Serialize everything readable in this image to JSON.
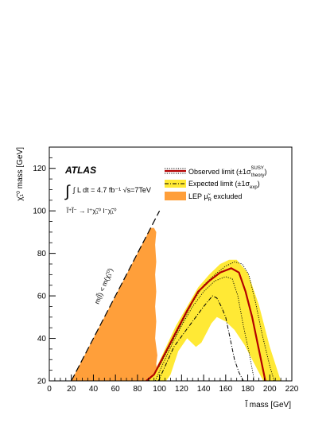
{
  "chart_data": {
    "type": "exclusion-contour",
    "xlabel": "l̃ mass [GeV]",
    "ylabel": "χ̃₁⁰ mass [GeV]",
    "xlim": [
      0,
      220
    ],
    "ylim": [
      20,
      130
    ],
    "x_ticks": [
      0,
      20,
      40,
      60,
      80,
      100,
      120,
      140,
      160,
      180,
      200,
      220
    ],
    "y_ticks": [
      20,
      40,
      60,
      80,
      100,
      120
    ],
    "experiment": "ATLAS",
    "luminosity": "∫ L dt = 4.7 fb⁻¹ √s=7TeV",
    "process": "l̃⁺l̃⁻ → l⁺χ̃₁⁰ l⁻χ̃₁⁰",
    "diagonal_label": "m(l̃) < m(χ̃₁⁰)",
    "legend": [
      {
        "name": "Observed limit (±1σ theory SUSY)",
        "label_main": "Observed limit (±1σ",
        "label_sup": "SUSY",
        "label_sub": "theory",
        "label_end": ")",
        "style": "observed"
      },
      {
        "name": "Expected limit (±1σ exp)",
        "label_main": "Expected limit (±1σ",
        "label_sub": "exp",
        "label_end": ")",
        "style": "expected"
      },
      {
        "name": "LEP μ̃R excluded",
        "label_main": "LEP μ̃",
        "label_sub": "R",
        "label_end": " excluded",
        "style": "lep"
      }
    ],
    "colors": {
      "observed": "#b30000",
      "expected_band": "#ffe935",
      "lep": "#ff9f3a",
      "diagonal": "#000000"
    },
    "diagonal": {
      "x": [
        20,
        100
      ],
      "y": [
        20,
        100
      ]
    },
    "lep_excluded": {
      "x": [
        20,
        92,
        95,
        97,
        96,
        97,
        96,
        97,
        96,
        97,
        96,
        98,
        97,
        98,
        96,
        20
      ],
      "y": [
        20,
        92,
        92,
        90,
        84,
        76,
        70,
        62,
        55,
        48,
        40,
        32,
        28,
        23,
        20,
        20
      ]
    },
    "expected_band": {
      "x": [
        90,
        96,
        105,
        115,
        125,
        135,
        145,
        155,
        163,
        170,
        180,
        190,
        200,
        210,
        206,
        194,
        187,
        177,
        168,
        160,
        152,
        147,
        143,
        138,
        133,
        125,
        117,
        110,
        106
      ],
      "y": [
        20,
        25,
        35,
        46,
        55,
        64,
        70,
        75,
        77,
        77,
        71,
        56,
        36,
        20,
        20,
        20,
        27,
        37,
        44,
        48,
        50,
        47,
        43,
        38,
        36,
        40,
        34,
        23,
        20
      ]
    },
    "observed": {
      "x": [
        88,
        95,
        105,
        115,
        125,
        135,
        145,
        155,
        165,
        172,
        178,
        184,
        190,
        196
      ],
      "y": [
        20,
        23,
        33,
        43,
        53,
        62,
        67,
        71,
        73,
        71,
        62,
        50,
        35,
        20
      ]
    },
    "observed_plus": {
      "x": [
        90,
        100,
        110,
        120,
        130,
        140,
        150,
        160,
        168,
        175,
        181,
        187,
        193,
        200,
        204
      ],
      "y": [
        20,
        27,
        37,
        47,
        57,
        65,
        70,
        74,
        76,
        75,
        70,
        57,
        42,
        27,
        20
      ]
    },
    "observed_minus": {
      "x": [
        96,
        104,
        112,
        120,
        130,
        140,
        150,
        160,
        166,
        171,
        176,
        181,
        186
      ],
      "y": [
        20,
        29,
        38,
        46,
        55,
        62,
        67,
        69,
        68,
        60,
        46,
        34,
        20
      ]
    },
    "expected": {
      "x": [
        99,
        106,
        113,
        120,
        130,
        140,
        148,
        152,
        156,
        160,
        164,
        168,
        172,
        176
      ],
      "y": [
        20,
        28,
        36,
        41,
        48,
        55,
        60,
        59,
        55,
        50,
        40,
        30,
        24,
        20
      ]
    }
  }
}
